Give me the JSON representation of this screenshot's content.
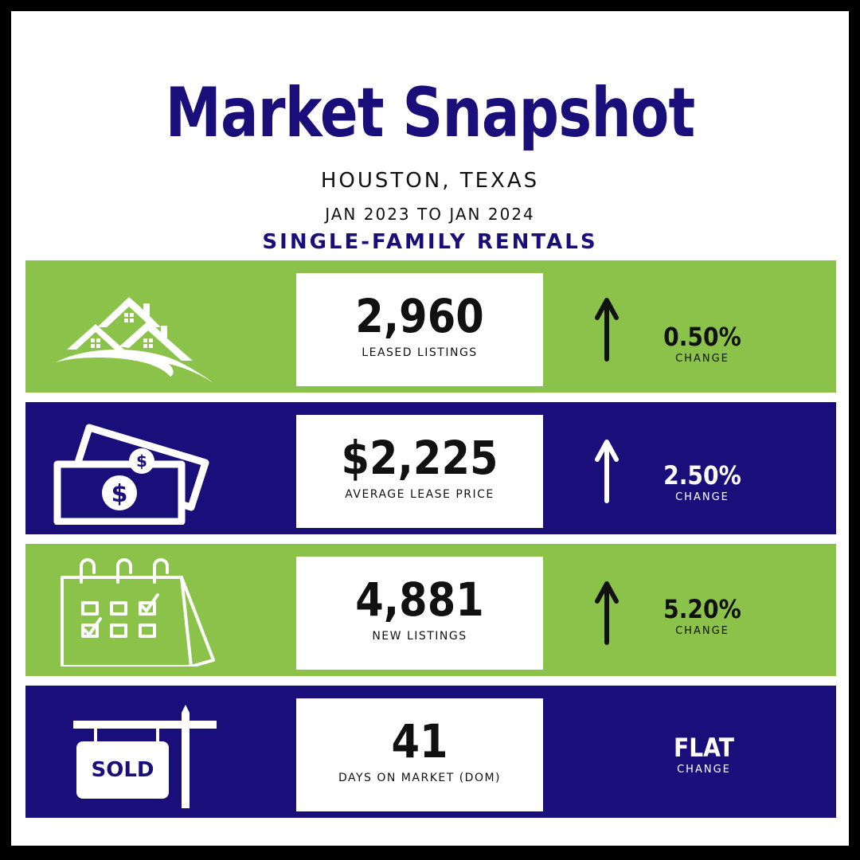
{
  "header": {
    "title": "Market Snapshot",
    "location": "HOUSTON, TEXAS",
    "date_range": "JAN 2023 TO JAN 2024",
    "segment": "SINGLE-FAMILY RENTALS"
  },
  "colors": {
    "navy": "#1a0f7a",
    "green": "#8bc34a",
    "white": "#ffffff",
    "text": "#111111"
  },
  "metrics": [
    {
      "icon": "houses-icon",
      "value": "2,960",
      "label": "LEASED LISTINGS",
      "change_value": "0.50%",
      "change_label": "CHANGE",
      "direction": "up"
    },
    {
      "icon": "money-icon",
      "value": "$2,225",
      "label": "AVERAGE LEASE PRICE",
      "change_value": "2.50%",
      "change_label": "CHANGE",
      "direction": "up"
    },
    {
      "icon": "calendar-icon",
      "value": "4,881",
      "label": "NEW LISTINGS",
      "change_value": "5.20%",
      "change_label": "CHANGE",
      "direction": "up"
    },
    {
      "icon": "sold-sign-icon",
      "value": "41",
      "label": "DAYS ON MARKET (DOM)",
      "change_value": "FLAT",
      "change_label": "CHANGE",
      "direction": "flat",
      "sign_text": "SOLD"
    }
  ]
}
